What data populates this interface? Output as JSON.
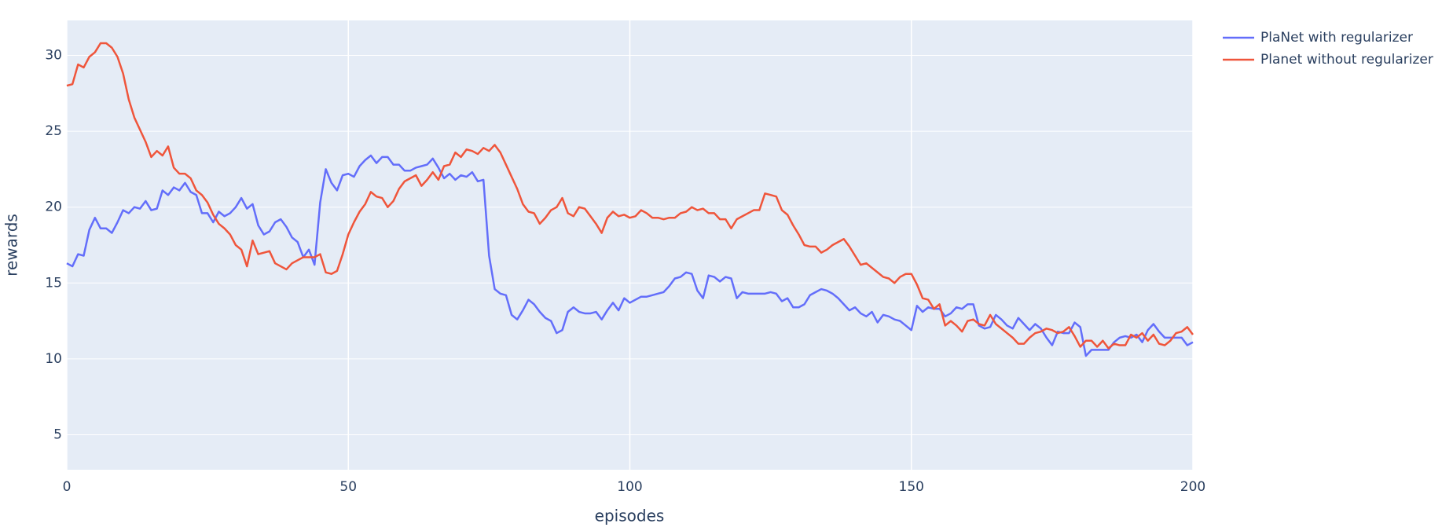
{
  "chart_data": {
    "type": "line",
    "x_label": "episodes",
    "y_label": "rewards",
    "xlim": [
      0,
      200
    ],
    "ylim": [
      2.7,
      32.3
    ],
    "xticks": [
      0,
      50,
      100,
      150,
      200
    ],
    "yticks": [
      5,
      10,
      15,
      20,
      25,
      30
    ],
    "grid": true,
    "legend": "top-right-outside",
    "x": [
      0,
      1,
      2,
      3,
      4,
      5,
      6,
      7,
      8,
      9,
      10,
      11,
      12,
      13,
      14,
      15,
      16,
      17,
      18,
      19,
      20,
      21,
      22,
      23,
      24,
      25,
      26,
      27,
      28,
      29,
      30,
      31,
      32,
      33,
      34,
      35,
      36,
      37,
      38,
      39,
      40,
      41,
      42,
      43,
      44,
      45,
      46,
      47,
      48,
      49,
      50,
      51,
      52,
      53,
      54,
      55,
      56,
      57,
      58,
      59,
      60,
      61,
      62,
      63,
      64,
      65,
      66,
      67,
      68,
      69,
      70,
      71,
      72,
      73,
      74,
      75,
      76,
      77,
      78,
      79,
      80,
      81,
      82,
      83,
      84,
      85,
      86,
      87,
      88,
      89,
      90,
      91,
      92,
      93,
      94,
      95,
      96,
      97,
      98,
      99,
      100,
      101,
      102,
      103,
      104,
      105,
      106,
      107,
      108,
      109,
      110,
      111,
      112,
      113,
      114,
      115,
      116,
      117,
      118,
      119,
      120,
      121,
      122,
      123,
      124,
      125,
      126,
      127,
      128,
      129,
      130,
      131,
      132,
      133,
      134,
      135,
      136,
      137,
      138,
      139,
      140,
      141,
      142,
      143,
      144,
      145,
      146,
      147,
      148,
      149,
      150,
      151,
      152,
      153,
      154,
      155,
      156,
      157,
      158,
      159,
      160,
      161,
      162,
      163,
      164,
      165,
      166,
      167,
      168,
      169,
      170,
      171,
      172,
      173,
      174,
      175,
      176,
      177,
      178,
      179,
      180,
      181,
      182,
      183,
      184,
      185,
      186,
      187,
      188,
      189,
      190,
      191,
      192,
      193,
      194,
      195,
      196,
      197,
      198,
      199,
      200
    ],
    "series": [
      {
        "name": "PlaNet with regularizer",
        "color": "#636efa",
        "values": [
          16.3,
          16.1,
          16.9,
          16.8,
          18.5,
          19.3,
          18.6,
          18.6,
          18.3,
          19.0,
          19.8,
          19.6,
          20.0,
          19.9,
          20.4,
          19.8,
          19.9,
          21.1,
          20.8,
          21.3,
          21.1,
          21.6,
          21.0,
          20.8,
          19.6,
          19.6,
          19.0,
          19.7,
          19.4,
          19.6,
          20.0,
          20.6,
          19.9,
          20.2,
          18.8,
          18.2,
          18.4,
          19.0,
          19.2,
          18.7,
          18.0,
          17.7,
          16.7,
          17.2,
          16.2,
          20.3,
          22.5,
          21.6,
          21.1,
          22.1,
          22.2,
          22.0,
          22.7,
          23.1,
          23.4,
          22.9,
          23.3,
          23.3,
          22.8,
          22.8,
          22.4,
          22.4,
          22.6,
          22.7,
          22.8,
          23.2,
          22.6,
          21.9,
          22.2,
          21.8,
          22.1,
          22.0,
          22.3,
          21.7,
          21.8,
          16.8,
          14.6,
          14.3,
          14.2,
          12.9,
          12.6,
          13.2,
          13.9,
          13.6,
          13.1,
          12.7,
          12.5,
          11.7,
          11.9,
          13.1,
          13.4,
          13.1,
          13.0,
          13.0,
          13.1,
          12.6,
          13.2,
          13.7,
          13.2,
          14.0,
          13.7,
          13.9,
          14.1,
          14.1,
          14.2,
          14.3,
          14.4,
          14.8,
          15.3,
          15.4,
          15.7,
          15.6,
          14.5,
          14.0,
          15.5,
          15.4,
          15.1,
          15.4,
          15.3,
          14.0,
          14.4,
          14.3,
          14.3,
          14.3,
          14.3,
          14.4,
          14.3,
          13.8,
          14.0,
          13.4,
          13.4,
          13.6,
          14.2,
          14.4,
          14.6,
          14.5,
          14.3,
          14.0,
          13.6,
          13.2,
          13.4,
          13.0,
          12.8,
          13.1,
          12.4,
          12.9,
          12.8,
          12.6,
          12.5,
          12.2,
          11.9,
          13.5,
          13.1,
          13.4,
          13.3,
          13.3,
          12.8,
          13.0,
          13.4,
          13.3,
          13.6,
          13.6,
          12.2,
          12.0,
          12.1,
          12.9,
          12.6,
          12.2,
          12.0,
          12.7,
          12.3,
          11.9,
          12.3,
          12.0,
          11.4,
          10.9,
          11.8,
          11.7,
          11.7,
          12.4,
          12.1,
          10.2,
          10.6,
          10.6,
          10.6,
          10.6,
          11.1,
          11.4,
          11.5,
          11.4,
          11.6,
          11.1,
          11.9,
          12.3,
          11.8,
          11.4,
          11.4,
          11.4,
          11.4,
          10.9,
          11.1
        ]
      },
      {
        "name": "Planet without regularizer",
        "color": "#EF553B",
        "values": [
          28.0,
          28.1,
          29.4,
          29.2,
          29.9,
          30.2,
          30.8,
          30.8,
          30.5,
          29.9,
          28.8,
          27.1,
          25.9,
          25.1,
          24.3,
          23.3,
          23.7,
          23.4,
          24.0,
          22.6,
          22.2,
          22.2,
          21.9,
          21.1,
          20.8,
          20.3,
          19.5,
          18.9,
          18.6,
          18.2,
          17.5,
          17.2,
          16.1,
          17.8,
          16.9,
          17.0,
          17.1,
          16.3,
          16.1,
          15.9,
          16.3,
          16.5,
          16.7,
          16.7,
          16.7,
          16.9,
          15.7,
          15.6,
          15.8,
          16.9,
          18.2,
          19.0,
          19.7,
          20.2,
          21.0,
          20.7,
          20.6,
          20.0,
          20.4,
          21.2,
          21.7,
          21.9,
          22.1,
          21.4,
          21.8,
          22.3,
          21.8,
          22.7,
          22.8,
          23.6,
          23.3,
          23.8,
          23.7,
          23.5,
          23.9,
          23.7,
          24.1,
          23.6,
          22.8,
          22.0,
          21.2,
          20.2,
          19.7,
          19.6,
          18.9,
          19.3,
          19.8,
          20.0,
          20.6,
          19.6,
          19.4,
          20.0,
          19.9,
          19.4,
          18.9,
          18.3,
          19.3,
          19.7,
          19.4,
          19.5,
          19.3,
          19.4,
          19.8,
          19.6,
          19.3,
          19.3,
          19.2,
          19.3,
          19.3,
          19.6,
          19.7,
          20.0,
          19.8,
          19.9,
          19.6,
          19.6,
          19.2,
          19.2,
          18.6,
          19.2,
          19.4,
          19.6,
          19.8,
          19.8,
          20.9,
          20.8,
          20.7,
          19.8,
          19.5,
          18.8,
          18.2,
          17.5,
          17.4,
          17.4,
          17.0,
          17.2,
          17.5,
          17.7,
          17.9,
          17.4,
          16.8,
          16.2,
          16.3,
          16.0,
          15.7,
          15.4,
          15.3,
          15.0,
          15.4,
          15.6,
          15.6,
          14.9,
          14.0,
          13.9,
          13.3,
          13.6,
          12.2,
          12.5,
          12.2,
          11.8,
          12.5,
          12.6,
          12.3,
          12.2,
          12.9,
          12.3,
          12.0,
          11.7,
          11.4,
          11.0,
          11.0,
          11.4,
          11.7,
          11.8,
          12.0,
          11.9,
          11.7,
          11.8,
          12.1,
          11.5,
          10.8,
          11.2,
          11.2,
          10.8,
          11.2,
          10.7,
          11.0,
          10.9,
          10.9,
          11.6,
          11.4,
          11.7,
          11.2,
          11.6,
          11.0,
          10.9,
          11.2,
          11.7,
          11.8,
          12.1,
          11.6
        ]
      }
    ]
  }
}
